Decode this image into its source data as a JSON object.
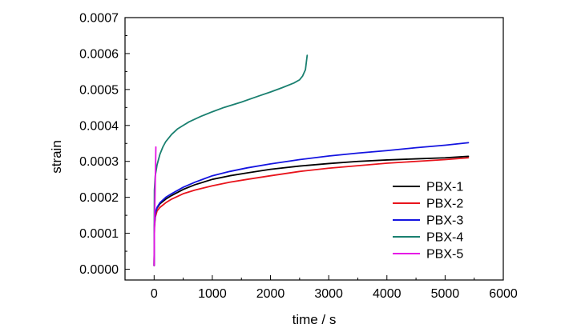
{
  "chart_data": {
    "type": "line",
    "title": "",
    "xlabel": "time / s",
    "ylabel": "strain",
    "xlim": [
      -500,
      6000
    ],
    "ylim": [
      -3e-05,
      0.0007
    ],
    "x_ticks": [
      0,
      1000,
      2000,
      3000,
      4000,
      5000,
      6000
    ],
    "x_tick_labels": [
      "0",
      "1000",
      "2000",
      "3000",
      "4000",
      "5000",
      "6000"
    ],
    "y_ticks": [
      0,
      0.0001,
      0.0002,
      0.0003,
      0.0004,
      0.0005,
      0.0006,
      0.0007
    ],
    "y_tick_labels": [
      "0.0000",
      "0.0001",
      "0.0002",
      "0.0003",
      "0.0004",
      "0.0005",
      "0.0006",
      "0.0007"
    ],
    "grid": false,
    "legend_position": "bottom-right",
    "series": [
      {
        "name": "PBX-1",
        "color": "#000000",
        "x": [
          0,
          5,
          20,
          50,
          100,
          200,
          300,
          500,
          700,
          1000,
          1300,
          1600,
          2000,
          2500,
          3000,
          3500,
          4000,
          4500,
          5000,
          5400
        ],
        "y": [
          1e-05,
          0.00012,
          0.000155,
          0.00017,
          0.000182,
          0.000195,
          0.000205,
          0.000222,
          0.000235,
          0.00025,
          0.00026,
          0.000268,
          0.000278,
          0.000287,
          0.000294,
          0.0003,
          0.000304,
          0.000307,
          0.00031,
          0.000314
        ]
      },
      {
        "name": "PBX-2",
        "color": "#e8141c",
        "x": [
          0,
          5,
          20,
          50,
          100,
          200,
          300,
          500,
          700,
          1000,
          1300,
          1600,
          2000,
          2500,
          3000,
          3500,
          4000,
          4500,
          5000,
          5400
        ],
        "y": [
          1e-05,
          0.000115,
          0.000145,
          0.000162,
          0.000172,
          0.000185,
          0.000195,
          0.00021,
          0.00022,
          0.000232,
          0.000242,
          0.00025,
          0.00026,
          0.000272,
          0.000281,
          0.000288,
          0.000295,
          0.0003,
          0.000305,
          0.00031
        ]
      },
      {
        "name": "PBX-3",
        "color": "#1414e0",
        "x": [
          0,
          5,
          20,
          50,
          100,
          200,
          300,
          500,
          700,
          1000,
          1300,
          1600,
          2000,
          2500,
          3000,
          3500,
          4000,
          4500,
          5000,
          5400
        ],
        "y": [
          1e-05,
          0.00012,
          0.000155,
          0.000172,
          0.000185,
          0.0002,
          0.00021,
          0.000228,
          0.000242,
          0.00026,
          0.000272,
          0.000282,
          0.000293,
          0.000305,
          0.000315,
          0.000323,
          0.00033,
          0.000338,
          0.000345,
          0.000352
        ]
      },
      {
        "name": "PBX-4",
        "color": "#1a8070",
        "x": [
          0,
          5,
          20,
          50,
          100,
          150,
          200,
          300,
          400,
          500,
          600,
          800,
          1000,
          1200,
          1500,
          1800,
          2000,
          2200,
          2400,
          2500,
          2550,
          2600,
          2630
        ],
        "y": [
          1e-05,
          0.00022,
          0.00026,
          0.00029,
          0.00032,
          0.00034,
          0.000355,
          0.000375,
          0.00039,
          0.0004,
          0.00041,
          0.000425,
          0.000438,
          0.00045,
          0.000465,
          0.000482,
          0.000493,
          0.000505,
          0.000518,
          0.000527,
          0.000537,
          0.000555,
          0.000595
        ]
      },
      {
        "name": "PBX-5",
        "color": "#e614e6",
        "x": [
          0,
          5,
          15,
          25,
          30
        ],
        "y": [
          1e-05,
          0.00012,
          0.0002,
          0.00029,
          0.00034
        ]
      }
    ]
  }
}
